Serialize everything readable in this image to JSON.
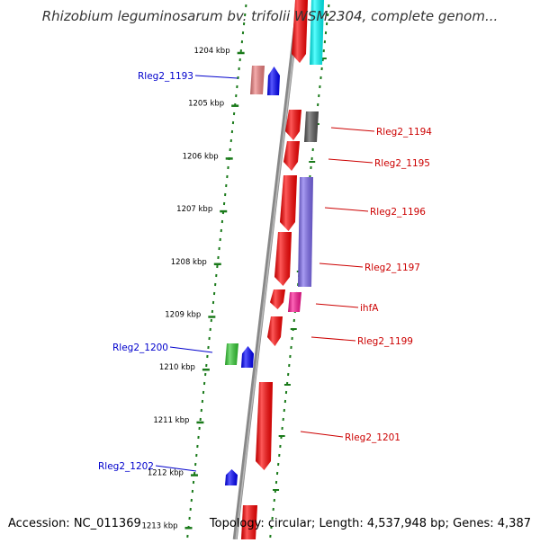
{
  "title": "Rhizobium leguminosarum bv. trifolii WSM2304, complete genom...",
  "footer": {
    "accession": "Accession: NC_011369",
    "topology": "Topology: circular; Length: 4,537,948 bp; Genes: 4,387"
  },
  "scale": {
    "ticks": [
      {
        "label": "1204 kbp",
        "kbp": 1204
      },
      {
        "label": "1205 kbp",
        "kbp": 1205
      },
      {
        "label": "1206 kbp",
        "kbp": 1206
      },
      {
        "label": "1207 kbp",
        "kbp": 1207
      },
      {
        "label": "1208 kbp",
        "kbp": 1208
      },
      {
        "label": "1209 kbp",
        "kbp": 1209
      },
      {
        "label": "1210 kbp",
        "kbp": 1210
      },
      {
        "label": "1211 kbp",
        "kbp": 1211
      },
      {
        "label": "1212 kbp",
        "kbp": 1212
      },
      {
        "label": "1213 kbp",
        "kbp": 1213
      }
    ]
  },
  "colors": {
    "red": "#ff0000",
    "blue": "#0000ff",
    "pink": "#f08080",
    "cyan": "#00ffff",
    "gray": "#555555",
    "slate": "#7b68ee",
    "magenta": "#ff1493",
    "green": "#33cc33",
    "tick": "#1a7a1a",
    "label_red": "#cc0000",
    "label_blue": "#0000cc"
  },
  "labels": [
    {
      "text": "Rleg2_1193",
      "color": "label_blue"
    },
    {
      "text": "Rleg2_1194",
      "color": "label_red"
    },
    {
      "text": "Rleg2_1195",
      "color": "label_red"
    },
    {
      "text": "Rleg2_1196",
      "color": "label_red"
    },
    {
      "text": "Rleg2_1197",
      "color": "label_red"
    },
    {
      "text": "ihfA",
      "color": "label_red"
    },
    {
      "text": "Rleg2_1199",
      "color": "label_red"
    },
    {
      "text": "Rleg2_1200",
      "color": "label_blue"
    },
    {
      "text": "Rleg2_1201",
      "color": "label_red"
    },
    {
      "text": "Rleg2_1202",
      "color": "label_blue"
    }
  ]
}
